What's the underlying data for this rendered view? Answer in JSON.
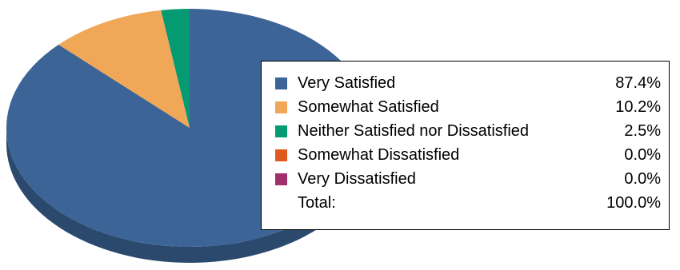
{
  "chart_data": {
    "type": "pie",
    "title": "",
    "legend_position": "right",
    "three_d": true,
    "slices": [
      {
        "label": "Very Satisfied",
        "value": 87.4,
        "display": "87.4%",
        "color": "#3c6497"
      },
      {
        "label": "Somewhat Satisfied",
        "value": 10.2,
        "display": "10.2%",
        "color": "#f0a758"
      },
      {
        "label": "Neither Satisfied nor Dissatisfied",
        "value": 2.5,
        "display": "2.5%",
        "color": "#069a72"
      },
      {
        "label": "Somewhat Dissatisfied",
        "value": 0.0,
        "display": "0.0%",
        "color": "#e05a20"
      },
      {
        "label": "Very Dissatisfied",
        "value": 0.0,
        "display": "0.0%",
        "color": "#a0306a"
      }
    ],
    "total": {
      "label": "Total:",
      "display": "100.0%"
    }
  }
}
